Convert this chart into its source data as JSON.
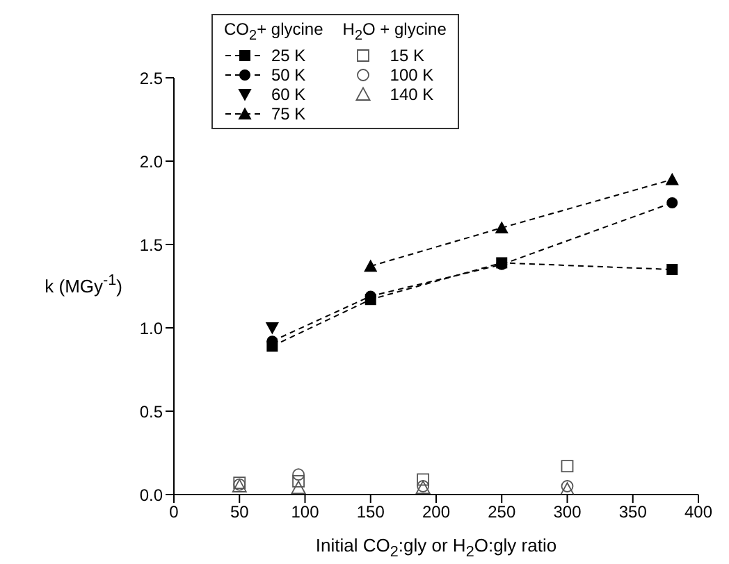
{
  "chart_data": {
    "type": "scatter",
    "xlabel": "Initial CO$_{2}$:gly or H$_{2}$O:gly ratio",
    "ylabel": "k (MGy$^{-1}$)",
    "annotations": [
      "CO$_{2}$+ glycine",
      "H$_{2}$O + glycine"
    ],
    "xlim": [
      0,
      400
    ],
    "xticks": [
      0,
      50,
      100,
      150,
      200,
      250,
      300,
      350,
      400
    ],
    "ylim": [
      0,
      2.5
    ],
    "yticks": [
      {
        "value": 0,
        "label": "0.0"
      },
      {
        "value": 0.5,
        "label": "0.5"
      },
      {
        "value": 1,
        "label": "1.0"
      },
      {
        "value": 1.5,
        "label": "1.5"
      },
      {
        "value": 2,
        "label": "2.0"
      },
      {
        "value": 2.5,
        "label": "2.5"
      }
    ],
    "grid": false,
    "legend": "top left",
    "series": [
      {
        "name": "25 K",
        "type": "line",
        "line_style": "dashed",
        "marker": "square",
        "color": "#000000",
        "x": [
          75,
          150,
          250,
          380
        ],
        "values": [
          0.89,
          1.17,
          1.39,
          1.35
        ]
      },
      {
        "name": "50 K",
        "type": "line",
        "line_style": "dashed",
        "marker": "circle",
        "color": "#000000",
        "x": [
          75,
          150,
          250,
          380
        ],
        "values": [
          0.92,
          1.19,
          1.38,
          1.75
        ]
      },
      {
        "name": "60 K",
        "type": "scatter",
        "marker": "triangle-down",
        "color": "#000000",
        "x": [
          75
        ],
        "values": [
          1.0
        ]
      },
      {
        "name": "75 K",
        "type": "line",
        "line_style": "dashed",
        "marker": "triangle",
        "color": "#000000",
        "x": [
          150,
          250,
          380
        ],
        "values": [
          1.37,
          1.6,
          1.89
        ]
      },
      {
        "name": "15 K",
        "type": "scatter",
        "marker": "square-open",
        "color": "#555555",
        "x": [
          50,
          95,
          190,
          300
        ],
        "values": [
          0.07,
          0.08,
          0.09,
          0.17
        ]
      },
      {
        "name": "100 K",
        "type": "scatter",
        "marker": "circle-open",
        "color": "#555555",
        "x": [
          50,
          95,
          190,
          300
        ],
        "values": [
          0.06,
          0.12,
          0.05,
          0.05
        ]
      },
      {
        "name": "140 K",
        "type": "scatter",
        "marker": "triangle-open",
        "color": "#555555",
        "x": [
          50,
          95,
          190,
          300
        ],
        "values": [
          0.05,
          0.04,
          0.04,
          0.03
        ]
      }
    ]
  }
}
